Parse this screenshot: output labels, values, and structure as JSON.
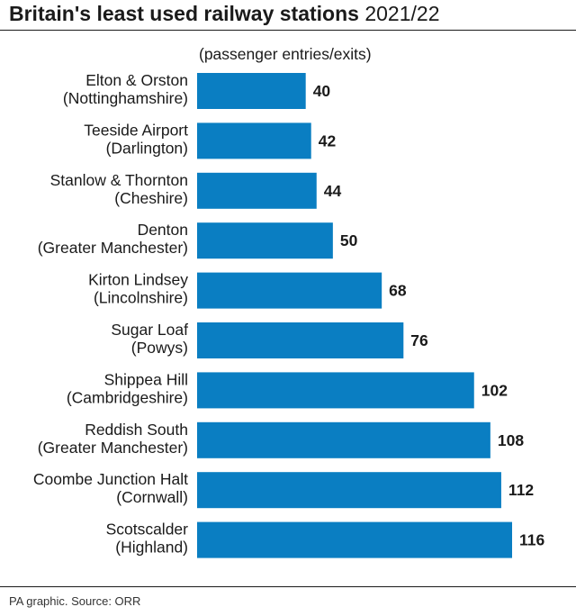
{
  "header": {
    "title_bold": "Britain's least used railway stations",
    "title_light": "2021/22"
  },
  "footer": {
    "source": "PA graphic. Source: ORR"
  },
  "chart_data": {
    "type": "bar",
    "orientation": "horizontal",
    "subtitle": "(passenger entries/exits)",
    "bar_color": "#0a7ec2",
    "categories": [
      [
        "Elton & Orston",
        "(Nottinghamshire)"
      ],
      [
        "Teeside Airport",
        "(Darlington)"
      ],
      [
        "Stanlow & Thornton",
        "(Cheshire)"
      ],
      [
        "Denton",
        "(Greater Manchester)"
      ],
      [
        "Kirton Lindsey",
        "(Lincolnshire)"
      ],
      [
        "Sugar Loaf",
        "(Powys)"
      ],
      [
        "Shippea Hill",
        "(Cambridgeshire)"
      ],
      [
        "Reddish South",
        "(Greater Manchester)"
      ],
      [
        "Coombe Junction Halt",
        "(Cornwall)"
      ],
      [
        "Scotscalder",
        "(Highland)"
      ]
    ],
    "values": [
      40,
      42,
      44,
      50,
      68,
      76,
      102,
      108,
      112,
      116
    ],
    "xlim": [
      0,
      116
    ],
    "grid": false,
    "legend": "none"
  }
}
